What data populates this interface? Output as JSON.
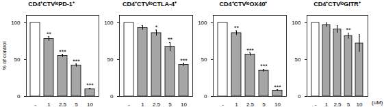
{
  "chart_data": [
    {
      "type": "bar",
      "title": "CD4⁺CTVˡᵒPD-1⁺",
      "y_label": "% of control",
      "categories": [
        "-",
        "1",
        "2.5",
        "5",
        "10"
      ],
      "values": [
        100,
        78,
        55,
        42,
        10
      ],
      "errors": [
        0,
        3,
        2,
        2,
        1
      ],
      "significance": [
        null,
        "**",
        "***",
        "***",
        "***"
      ],
      "colors": [
        "#ffffff",
        "#a6a6a6",
        "#a6a6a6",
        "#a6a6a6",
        "#a6a6a6"
      ],
      "ylim": [
        0,
        110
      ],
      "yticks": [
        0,
        50,
        100
      ]
    },
    {
      "type": "bar",
      "title": "CD4⁺CTVˡᵒCTLA-4⁺",
      "categories": [
        "-",
        "1",
        "2.5",
        "5",
        "10"
      ],
      "values": [
        100,
        93,
        86,
        67,
        43
      ],
      "errors": [
        0,
        3,
        4,
        6,
        2
      ],
      "significance": [
        null,
        null,
        "*",
        "**",
        "***"
      ],
      "colors": [
        "#ffffff",
        "#a6a6a6",
        "#a6a6a6",
        "#a6a6a6",
        "#a6a6a6"
      ],
      "ylim": [
        0,
        110
      ],
      "yticks": [
        0,
        50,
        100
      ]
    },
    {
      "type": "bar",
      "title": "CD4⁺CTVˡᵒOX40⁺",
      "categories": [
        "-",
        "1",
        "2.5",
        "5",
        "10"
      ],
      "values": [
        100,
        86,
        57,
        35,
        8
      ],
      "errors": [
        0,
        3,
        2,
        2,
        1
      ],
      "significance": [
        null,
        "**",
        "***",
        "***",
        "***"
      ],
      "colors": [
        "#ffffff",
        "#a6a6a6",
        "#a6a6a6",
        "#a6a6a6",
        "#a6a6a6"
      ],
      "ylim": [
        0,
        110
      ],
      "yticks": [
        0,
        50,
        100
      ]
    },
    {
      "type": "bar",
      "title": "CD4⁺CTVˡᵒGITR⁺",
      "x_label": "(uM)",
      "categories": [
        "-",
        "1",
        "2.5",
        "5",
        "10"
      ],
      "values": [
        100,
        97,
        91,
        82,
        72
      ],
      "errors": [
        0,
        3,
        5,
        4,
        12
      ],
      "significance": [
        null,
        null,
        null,
        "**",
        null
      ],
      "colors": [
        "#ffffff",
        "#a6a6a6",
        "#a6a6a6",
        "#a6a6a6",
        "#a6a6a6"
      ],
      "ylim": [
        0,
        110
      ],
      "yticks": [
        0,
        50,
        100
      ]
    }
  ]
}
